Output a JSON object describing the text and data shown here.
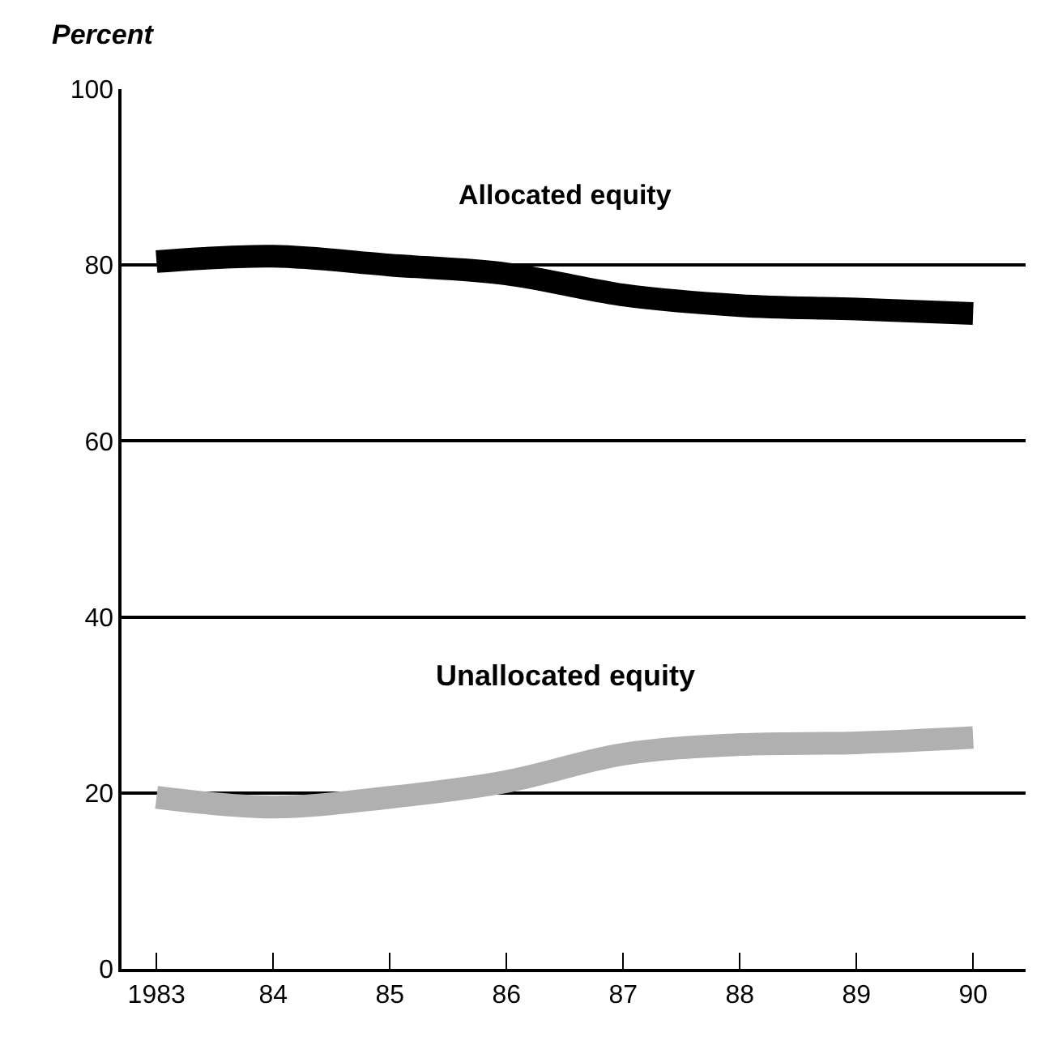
{
  "chart_data": {
    "type": "line",
    "ylabel": "Percent",
    "categories": [
      "1983",
      "84",
      "85",
      "86",
      "87",
      "88",
      "89",
      "90"
    ],
    "series": [
      {
        "name": "Allocated equity",
        "color": "#000000",
        "values": [
          80.4,
          81,
          80,
          79,
          76.6,
          75.4,
          75,
          74.5
        ]
      },
      {
        "name": "Unallocated equity",
        "color": "#b0b0b0",
        "values": [
          19.5,
          18.4,
          19.5,
          21.3,
          24.4,
          25.5,
          25.7,
          26.3
        ]
      }
    ],
    "ylim": [
      0,
      100
    ],
    "yticks": [
      0,
      20,
      40,
      60,
      80,
      100
    ],
    "grid": "y",
    "legend": false,
    "marker": "none",
    "line_style": "solid"
  }
}
